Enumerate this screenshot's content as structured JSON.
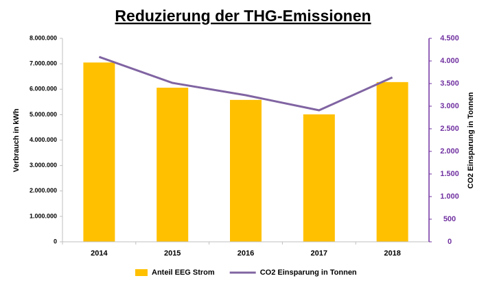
{
  "chart_data": {
    "type": "bar_line",
    "title": "Reduzierung der THG-Emissionen",
    "ylabel": "Verbrauch in kWh",
    "y2label": "CO2 Einsparung  in Tonnen",
    "categories": [
      "2014",
      "2015",
      "2016",
      "2017",
      "2018"
    ],
    "series": [
      {
        "name": "Anteil EEG Strom",
        "type": "bar",
        "color": "#FFC000",
        "values": [
          7050000,
          6060000,
          5580000,
          5010000,
          6280000
        ]
      },
      {
        "name": "CO2 Einsparung in Tonnen",
        "type": "line",
        "axis": "y2",
        "color": "#8064A2",
        "values": [
          4090,
          3515,
          3242,
          2909,
          3636
        ]
      }
    ],
    "ylim": [
      0,
      8000000
    ],
    "yticks": [
      0,
      {
        "value": 1000000,
        "label": "1.000.000"
      },
      {
        "value": 2000000,
        "label": "2.000.000"
      },
      {
        "value": 3000000,
        "label": "3.000.000"
      },
      {
        "value": 4000000,
        "label": "4.000.000"
      },
      {
        "value": 5000000,
        "label": "5.000.000"
      },
      {
        "value": 6000000,
        "label": "6.000.000"
      },
      {
        "value": 7000000,
        "label": "7.000.000"
      },
      {
        "value": 8000000,
        "label": "8.000.000"
      }
    ],
    "y2lim": [
      0,
      4500
    ],
    "y2ticks": [
      0,
      500,
      {
        "value": 1000,
        "label": "1.000"
      },
      {
        "value": 1500,
        "label": "1.500"
      },
      {
        "value": 2000,
        "label": "2.000"
      },
      {
        "value": 2500,
        "label": "2.500"
      },
      {
        "value": 3000,
        "label": "3.000"
      },
      {
        "value": 3500,
        "label": "3.500"
      },
      {
        "value": 4000,
        "label": "4.000"
      },
      {
        "value": 4500,
        "label": "4.500"
      }
    ],
    "y2color": "#7030A0",
    "legend": "bottom",
    "grid": false
  }
}
